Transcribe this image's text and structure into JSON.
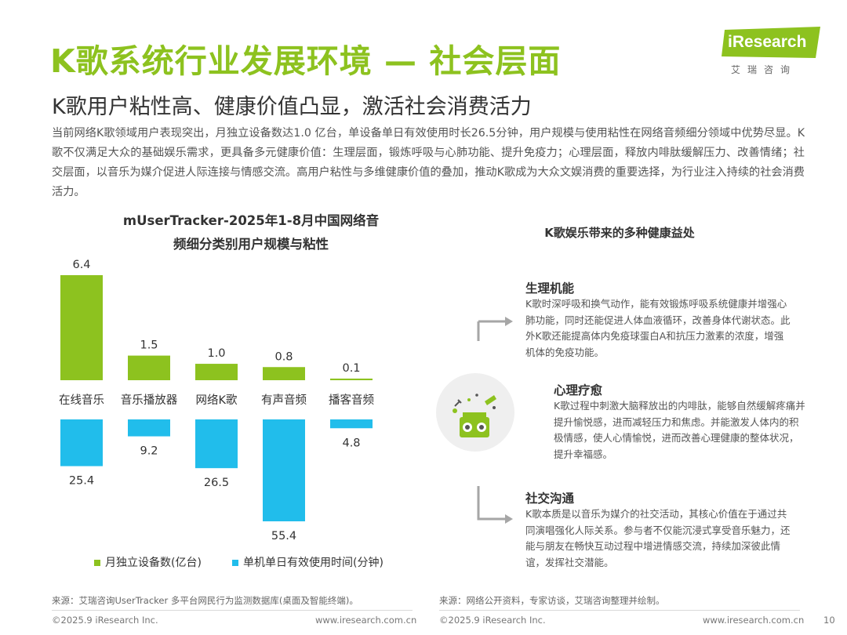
{
  "header": {
    "title": "K歌系统行业发展环境 — 社会层面",
    "subtitle": "K歌用户粘性高、健康价值凸显，激活社会消费活力",
    "intro": "当前网络K歌领域用户表现突出，月独立设备数达1.0 亿台，单设备单日有效使用时长26.5分钟，用户规模与使用粘性在网络音频细分领域中优势尽显。K歌不仅满足大众的基础娱乐需求，更具备多元健康价值：生理层面，锻炼呼吸与心肺功能、提升免疫力；心理层面，释放内啡肽缓解压力、改善情绪；社交层面，以音乐为媒介促进人际连接与情感交流。高用户粘性与多维健康价值的叠加，推动K歌成为大众文娱消费的重要选择，为行业注入持续的社会消费活力。"
  },
  "logo": {
    "brand": "iResearch",
    "cn": "艾瑞咨询"
  },
  "chart": {
    "title_line1": "mUserTracker-2025年1-8月中国网络音",
    "title_line2": "频细分类别用户规模与粘性",
    "legend": {
      "devices": "月独立设备数(亿台)",
      "time": "单机单日有效使用时间(分钟)"
    }
  },
  "chart_data": {
    "type": "bar",
    "title": "mUserTracker-2025年1-8月中国网络音频细分类别用户规模与粘性",
    "categories": [
      "在线音乐",
      "音乐播放器",
      "网络K歌",
      "有声音频",
      "播客音频"
    ],
    "series": [
      {
        "name": "月独立设备数(亿台)",
        "values": [
          6.4,
          1.5,
          1.0,
          0.8,
          0.1
        ],
        "labels": [
          "6.4",
          "1.5",
          "1.0",
          "0.8",
          "0.1"
        ],
        "color": "#8dc21f",
        "direction": "up"
      },
      {
        "name": "单机单日有效使用时间(分钟)",
        "values": [
          25.4,
          9.2,
          26.5,
          55.4,
          4.8
        ],
        "labels": [
          "25.4",
          "9.2",
          "26.5",
          "55.4",
          "4.8"
        ],
        "color": "#21bdeb",
        "direction": "down"
      }
    ],
    "legend_position": "bottom"
  },
  "right": {
    "title": "K歌娱乐带来的多种健康益处",
    "benefits": [
      {
        "heading": "生理机能",
        "text": "K歌时深呼吸和换气动作，能有效锻炼呼吸系统健康并增强心肺功能，同时还能促进人体血液循环，改善身体代谢状态。此外K歌还能提高体内免疫球蛋白A和抗压力激素的浓度，增强机体的免疫功能。"
      },
      {
        "heading": "心理疗愈",
        "text": "K歌过程中刺激大脑释放出的内啡肽，能够自然缓解疼痛并提升愉悦感，进而减轻压力和焦虑。并能激发人体内的积极情感，使人心情愉悦，进而改善心理健康的整体状况，提升幸福感。"
      },
      {
        "heading": "社交沟通",
        "text": "K歌本质是以音乐为媒介的社交活动，其核心价值在于通过共同演唱强化人际关系。参与者不仅能沉浸式享受音乐魅力，还能与朋友在畅快互动过程中增进情感交流，持续加深彼此情谊，发挥社交潜能。"
      }
    ]
  },
  "sources": {
    "left": "来源：艾瑞咨询UserTracker 多平台网民行为监测数据库(桌面及智能终端)。",
    "right": "来源：网络公开资料，专家访谈，艾瑞咨询整理并绘制。"
  },
  "footer": {
    "copyright_left": "©2025.9 iResearch Inc.",
    "url_left": "www.iresearch.com.cn",
    "copyright_right": "©2025.9 iResearch Inc.",
    "url_right": "www.iresearch.com.cn",
    "page": "10"
  },
  "colors": {
    "accent": "#8dc21f",
    "blue": "#21bdeb",
    "gray": "#a6a6a6"
  }
}
